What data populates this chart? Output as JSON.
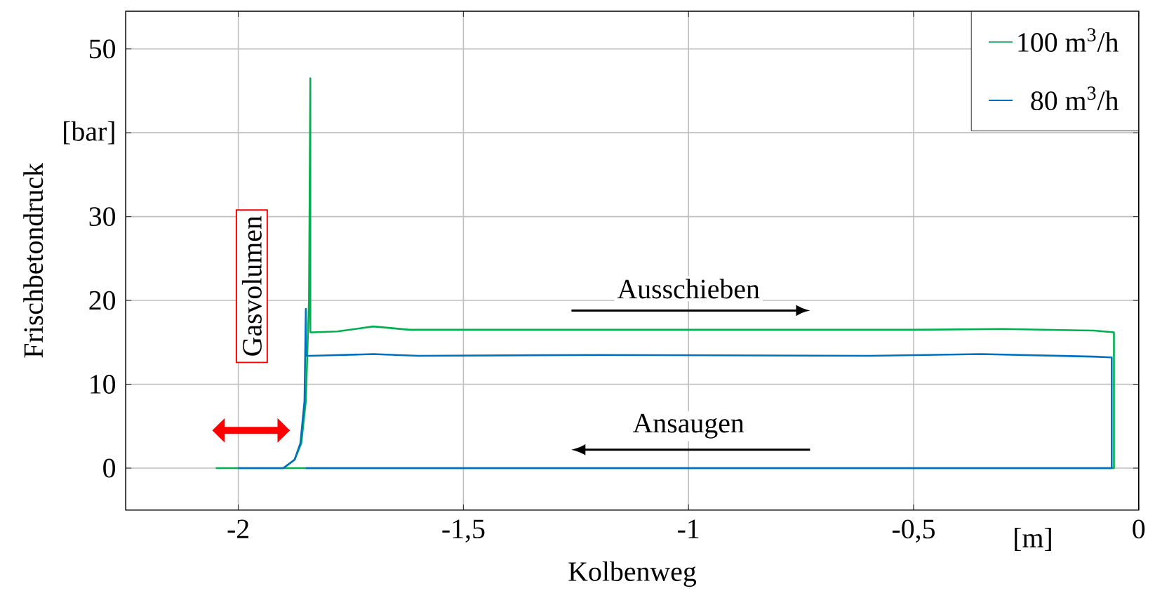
{
  "chart_data": {
    "type": "line",
    "xlabel": "Kolbenweg",
    "ylabel": "Frischbetondruck",
    "xlim": [
      -2.25,
      0
    ],
    "ylim": [
      -5,
      54.5
    ],
    "xticks": [
      -2,
      {
        "value": -1.5,
        "label": "-1,5"
      },
      -1,
      {
        "value": -0.5,
        "label": "-0,5"
      },
      0
    ],
    "yticks": [
      0,
      10,
      20,
      30,
      {
        "value": 40,
        "label": "[bar]"
      },
      50
    ],
    "grid": true,
    "legend": "top right",
    "line_style": "solid",
    "marker": "none",
    "annotations": [
      "Gasvolumen",
      "Ausschieben",
      "Ansaugen",
      "[m]"
    ],
    "series": [
      {
        "name": "100 m$^{3}$/h",
        "color": "#00b050",
        "x": [
          -2.05,
          -1.9,
          -1.875,
          -1.86,
          -1.85,
          -1.843,
          -1.84,
          -1.84,
          -1.835,
          -1.78,
          -1.7,
          -1.62,
          -1.5,
          -1.0,
          -0.5,
          -0.3,
          -0.1,
          -0.055,
          -0.055,
          -1.9
        ],
        "values": [
          0,
          0,
          1,
          3,
          8,
          20,
          46.5,
          16.2,
          16.2,
          16.3,
          16.9,
          16.5,
          16.5,
          16.5,
          16.5,
          16.6,
          16.4,
          16.2,
          0,
          0
        ]
      },
      {
        "name": "80 m$^{3}$/h",
        "color": "#0070c0",
        "x": [
          -2.0,
          -1.9,
          -1.875,
          -1.862,
          -1.853,
          -1.85,
          -1.85,
          -1.84,
          -1.7,
          -1.6,
          -1.2,
          -0.6,
          -0.35,
          -0.1,
          -0.06,
          -0.06,
          -1.85
        ],
        "values": [
          0,
          0,
          1,
          3,
          8,
          19,
          13.4,
          13.4,
          13.6,
          13.4,
          13.5,
          13.4,
          13.6,
          13.3,
          13.2,
          0,
          0
        ]
      }
    ]
  }
}
